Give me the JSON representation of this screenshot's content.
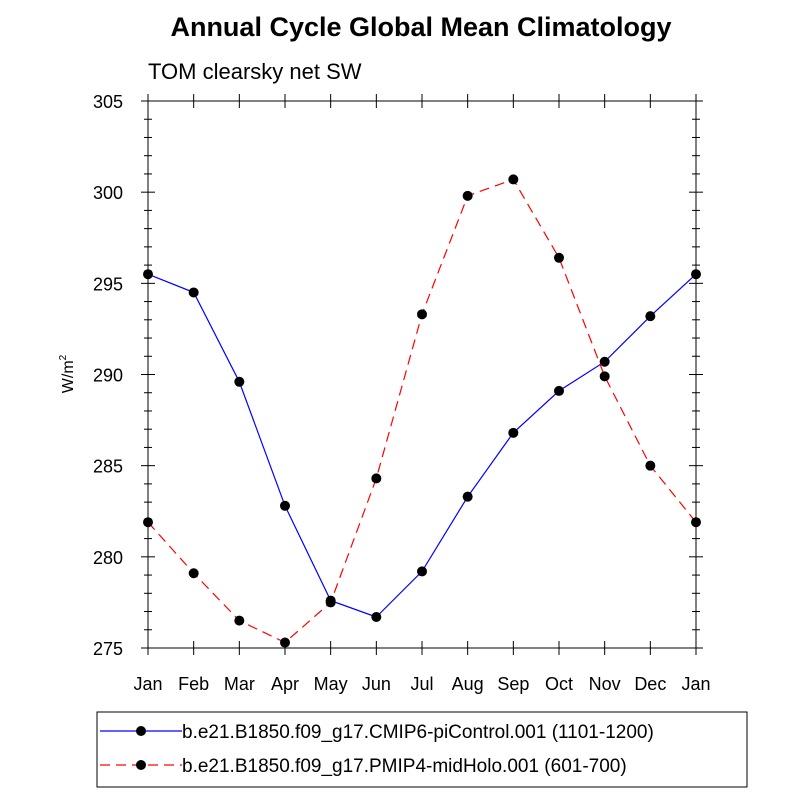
{
  "chart_data": {
    "type": "line",
    "title": "Annual Cycle Global Mean Climatology",
    "subtitle": "TOM clearsky net SW",
    "ylabel": "W/m",
    "ylabel_superscript": "2",
    "xlabel": "",
    "categories": [
      "Jan",
      "Feb",
      "Mar",
      "Apr",
      "May",
      "Jun",
      "Jul",
      "Aug",
      "Sep",
      "Oct",
      "Nov",
      "Dec",
      "Jan"
    ],
    "ylim": [
      275,
      305
    ],
    "yticks": [
      275,
      280,
      285,
      290,
      295,
      300,
      305
    ],
    "legend_position": "bottom",
    "grid": false,
    "series": [
      {
        "name": "b.e21.B1850.f09_g17.CMIP6-piControl.001 (1101-1200)",
        "color": "#0000ff",
        "dash": "solid",
        "values": [
          295.5,
          294.5,
          289.6,
          282.8,
          277.6,
          276.7,
          279.2,
          283.3,
          286.8,
          289.1,
          290.7,
          293.2,
          295.5
        ]
      },
      {
        "name": "b.e21.B1850.f09_g17.PMIP4-midHolo.001 (601-700)",
        "color": "#ff0000",
        "dash": "dashed",
        "values": [
          281.9,
          279.1,
          276.5,
          275.3,
          277.5,
          284.3,
          293.3,
          299.8,
          300.7,
          296.4,
          289.9,
          285.0,
          281.9
        ]
      }
    ]
  }
}
